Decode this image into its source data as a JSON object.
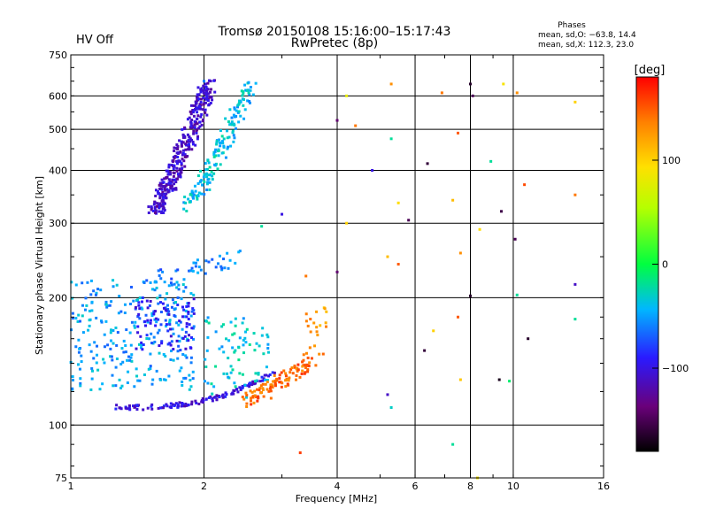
{
  "status_label": "HV Off",
  "colors": {
    "status": "#cc0000",
    "grid": "#000000",
    "background": "#ffffff"
  },
  "header": {
    "title_line1": "Tromsø 20150108 15:16:00–15:17:43",
    "title_line2": "RwPretec (8p)",
    "stats_title": "Phases",
    "stats_o": "mean, sd,O: −63.8, 14.4",
    "stats_x": "mean, sd,X: 112.3, 23.0"
  },
  "chart_data": {
    "type": "scatter",
    "xlabel": "Frequency [MHz]",
    "ylabel": "Stationary phase Virtual Height [km]",
    "x_scale": "log",
    "y_scale": "log",
    "xlim": [
      1,
      16
    ],
    "ylim": [
      75,
      750
    ],
    "x_ticks": [
      1,
      2,
      4,
      6,
      8,
      10,
      16
    ],
    "y_ticks": [
      75,
      100,
      200,
      300,
      400,
      500,
      600,
      750
    ],
    "x_tick_labels": [
      "1",
      "2",
      "4",
      "6",
      "8",
      "10",
      "16"
    ],
    "y_tick_labels": [
      "75",
      "100",
      "200",
      "300",
      "400",
      "500",
      "600",
      "750"
    ],
    "grid": true,
    "colorbar": {
      "label": "[deg]",
      "range": [
        -180,
        180
      ],
      "ticks": [
        -100,
        0,
        100
      ],
      "tick_labels": [
        "−100",
        "0",
        "100"
      ],
      "colormap": "rainbow"
    },
    "clusters": [
      {
        "name": "F-region O trace",
        "x": [
          1.55,
          2.05
        ],
        "y": [
          320,
          640
        ],
        "phase": -110,
        "n": 340,
        "shape": "curve_up"
      },
      {
        "name": "F-region X trace",
        "x": [
          1.85,
          2.55
        ],
        "y": [
          330,
          640
        ],
        "phase": -40,
        "n": 160,
        "shape": "curve_up"
      },
      {
        "name": "E-layer low trace",
        "x": [
          1.25,
          2.9
        ],
        "y": [
          110,
          125
        ],
        "phase": -100,
        "n": 130,
        "shape": "curve_up_low"
      },
      {
        "name": "Sporadic cloud left",
        "x": [
          1.0,
          1.9
        ],
        "y": [
          120,
          220
        ],
        "phase": -50,
        "n": 260,
        "shape": "cloud"
      },
      {
        "name": "Sporadic cloud blue",
        "x": [
          1.4,
          1.9
        ],
        "y": [
          150,
          200
        ],
        "phase": -90,
        "n": 90,
        "shape": "cloud"
      },
      {
        "name": "Mid-band cloud",
        "x": [
          2.0,
          2.8
        ],
        "y": [
          115,
          180
        ],
        "phase": -35,
        "n": 80,
        "shape": "cloud"
      },
      {
        "name": "Orange X trace",
        "x": [
          2.5,
          3.6
        ],
        "y": [
          115,
          145
        ],
        "phase": 145,
        "n": 110,
        "shape": "curve_up"
      },
      {
        "name": "Orange X upper",
        "x": [
          3.4,
          3.8
        ],
        "y": [
          150,
          190
        ],
        "phase": 125,
        "n": 18,
        "shape": "cloud"
      },
      {
        "name": "Mid-height tail",
        "x": [
          1.5,
          2.4
        ],
        "y": [
          220,
          250
        ],
        "phase": -60,
        "n": 45,
        "shape": "curve_up"
      }
    ],
    "points": [
      {
        "x": 4.0,
        "y": 525,
        "phase": -140
      },
      {
        "x": 4.2,
        "y": 600,
        "phase": 80
      },
      {
        "x": 4.4,
        "y": 510,
        "phase": 140
      },
      {
        "x": 5.3,
        "y": 475,
        "phase": -20
      },
      {
        "x": 5.5,
        "y": 335,
        "phase": 95
      },
      {
        "x": 5.8,
        "y": 305,
        "phase": -150
      },
      {
        "x": 6.4,
        "y": 415,
        "phase": -160
      },
      {
        "x": 7.3,
        "y": 340,
        "phase": 110
      },
      {
        "x": 7.5,
        "y": 490,
        "phase": 150
      },
      {
        "x": 8.0,
        "y": 640,
        "phase": -165
      },
      {
        "x": 8.1,
        "y": 600,
        "phase": -150
      },
      {
        "x": 8.4,
        "y": 290,
        "phase": 95
      },
      {
        "x": 8.9,
        "y": 420,
        "phase": -20
      },
      {
        "x": 9.4,
        "y": 320,
        "phase": -155
      },
      {
        "x": 10.1,
        "y": 275,
        "phase": -150
      },
      {
        "x": 10.2,
        "y": 610,
        "phase": 130
      },
      {
        "x": 10.6,
        "y": 370,
        "phase": 155
      },
      {
        "x": 13.8,
        "y": 350,
        "phase": 140
      },
      {
        "x": 13.8,
        "y": 580,
        "phase": 100
      },
      {
        "x": 13.8,
        "y": 215,
        "phase": -110
      },
      {
        "x": 13.8,
        "y": 178,
        "phase": -20
      },
      {
        "x": 10.8,
        "y": 160,
        "phase": -165
      },
      {
        "x": 9.3,
        "y": 128,
        "phase": -170
      },
      {
        "x": 9.8,
        "y": 127,
        "phase": -10
      },
      {
        "x": 7.6,
        "y": 128,
        "phase": 105
      },
      {
        "x": 7.5,
        "y": 180,
        "phase": 150
      },
      {
        "x": 6.3,
        "y": 150,
        "phase": -160
      },
      {
        "x": 6.6,
        "y": 167,
        "phase": 100
      },
      {
        "x": 5.2,
        "y": 118,
        "phase": -110
      },
      {
        "x": 5.3,
        "y": 110,
        "phase": -30
      },
      {
        "x": 4.2,
        "y": 300,
        "phase": 100
      },
      {
        "x": 4.0,
        "y": 230,
        "phase": -140
      },
      {
        "x": 5.2,
        "y": 250,
        "phase": 110
      },
      {
        "x": 5.5,
        "y": 240,
        "phase": 150
      },
      {
        "x": 7.3,
        "y": 90,
        "phase": -20
      },
      {
        "x": 8.1,
        "y": 74,
        "phase": -170
      },
      {
        "x": 8.3,
        "y": 75,
        "phase": 90
      },
      {
        "x": 3.3,
        "y": 86,
        "phase": 160
      },
      {
        "x": 2.7,
        "y": 295,
        "phase": -20
      },
      {
        "x": 3.0,
        "y": 315,
        "phase": -100
      },
      {
        "x": 3.4,
        "y": 225,
        "phase": 140
      },
      {
        "x": 2.0,
        "y": 650,
        "phase": -60
      },
      {
        "x": 6.9,
        "y": 610,
        "phase": 140
      },
      {
        "x": 5.3,
        "y": 640,
        "phase": 130
      },
      {
        "x": 9.5,
        "y": 640,
        "phase": 90
      },
      {
        "x": 8.0,
        "y": 202,
        "phase": -165
      },
      {
        "x": 10.2,
        "y": 203,
        "phase": -20
      },
      {
        "x": 4.8,
        "y": 400,
        "phase": -100
      },
      {
        "x": 7.6,
        "y": 255,
        "phase": 130
      }
    ]
  }
}
